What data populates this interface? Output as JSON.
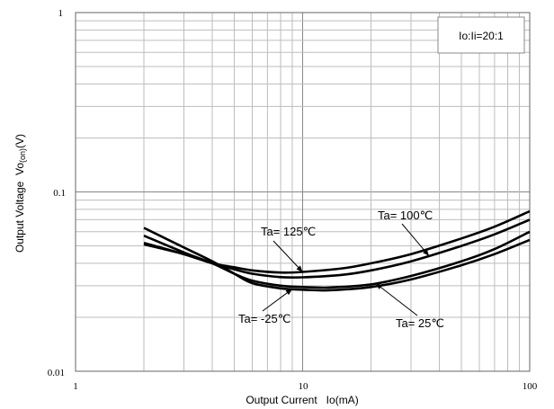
{
  "chart_data": {
    "type": "line",
    "x_scale": "log",
    "y_scale": "log",
    "xlim": [
      1,
      100
    ],
    "ylim": [
      0.01,
      1
    ],
    "grid": true,
    "xlabel": "Output Current   Io(mA)",
    "ylabel": "Output Voltage  Vo(on)(V)",
    "ylabel_main": "Output Voltage  Vo",
    "ylabel_sub": "(on)",
    "ylabel_tail": "(V)",
    "x_ticks": [
      "1",
      "10",
      "100"
    ],
    "y_ticks": [
      "0.01",
      "0.1",
      "1"
    ],
    "condition_box": "Io:Ii=20:1",
    "series": [
      {
        "name": "Ta= 125℃",
        "x": [
          2,
          3,
          4,
          5,
          6,
          8,
          10,
          15,
          20,
          30,
          50,
          70,
          100
        ],
        "y": [
          0.051,
          0.045,
          0.04,
          0.038,
          0.0365,
          0.0355,
          0.0358,
          0.0375,
          0.04,
          0.045,
          0.055,
          0.064,
          0.078
        ]
      },
      {
        "name": "Ta= 100℃",
        "x": [
          2,
          3,
          4,
          5,
          6,
          8,
          10,
          15,
          20,
          30,
          50,
          70,
          100
        ],
        "y": [
          0.052,
          0.045,
          0.04,
          0.037,
          0.035,
          0.0335,
          0.0334,
          0.0345,
          0.0365,
          0.041,
          0.05,
          0.058,
          0.07
        ]
      },
      {
        "name": "Ta= 25℃",
        "x": [
          2,
          3,
          4,
          5,
          6,
          8,
          10,
          13,
          20,
          30,
          50,
          70,
          100
        ],
        "y": [
          0.057,
          0.046,
          0.04,
          0.035,
          0.032,
          0.03,
          0.0295,
          0.0293,
          0.0305,
          0.034,
          0.041,
          0.048,
          0.06
        ]
      },
      {
        "name": "Ta= -25℃",
        "x": [
          2,
          3,
          4,
          5,
          6,
          8,
          10,
          13,
          20,
          30,
          50,
          70,
          100
        ],
        "y": [
          0.063,
          0.049,
          0.041,
          0.035,
          0.031,
          0.029,
          0.0285,
          0.0283,
          0.0295,
          0.0325,
          0.039,
          0.045,
          0.054
        ]
      }
    ],
    "annotations": [
      {
        "text": "Ta= 125℃",
        "series": "Ta= 125℃",
        "at_x": 10
      },
      {
        "text": "Ta= 100℃",
        "series": "Ta= 100℃",
        "at_x": 36
      },
      {
        "text": "Ta= 25℃",
        "series": "Ta= 25℃",
        "at_x": 21
      },
      {
        "text": "Ta= -25℃",
        "series": "Ta= -25℃",
        "at_x": 9
      }
    ]
  }
}
